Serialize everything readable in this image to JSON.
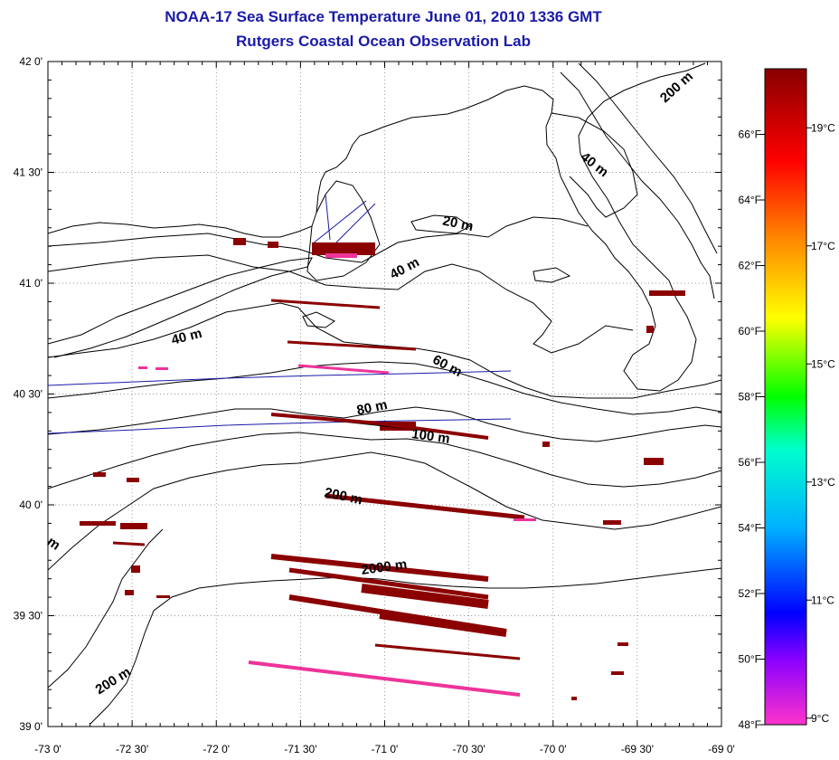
{
  "title": {
    "line1": "NOAA-17 Sea Surface Temperature June 01, 2010 1336 GMT",
    "line2": "Rutgers Coastal Ocean Observation Lab"
  },
  "map": {
    "lon_range": [
      -73.0,
      -69.0
    ],
    "lat_range": [
      39.0,
      42.0
    ],
    "lon_ticks": [
      "-73 0'",
      "-72 30'",
      "-72 0'",
      "-71 30'",
      "-71 0'",
      "-70 30'",
      "-70 0'",
      "-69 30'",
      "-69 0'"
    ],
    "lat_ticks": [
      "39 0'",
      "39 30'",
      "40 0'",
      "40 30'",
      "41 0'",
      "41 30'",
      "42 0'"
    ],
    "gridlines": true,
    "contour_labels": [
      {
        "text": "200 m",
        "lon": -69.25,
        "lat": 41.87,
        "angle": -42
      },
      {
        "text": "40 m",
        "lon": -69.77,
        "lat": 41.52,
        "angle": 38
      },
      {
        "text": "20 m",
        "lon": -70.57,
        "lat": 41.25,
        "angle": 12
      },
      {
        "text": "40 m",
        "lon": -70.87,
        "lat": 41.05,
        "angle": -28
      },
      {
        "text": "40 m",
        "lon": -72.17,
        "lat": 40.74,
        "angle": -14
      },
      {
        "text": "60 m",
        "lon": -70.64,
        "lat": 40.61,
        "angle": 28
      },
      {
        "text": "80 m",
        "lon": -71.07,
        "lat": 40.42,
        "angle": -12
      },
      {
        "text": "100 m",
        "lon": -70.73,
        "lat": 40.29,
        "angle": 8
      },
      {
        "text": "200 m",
        "lon": -71.25,
        "lat": 40.02,
        "angle": 12
      },
      {
        "text": "2000 m",
        "lon": -71.0,
        "lat": 39.7,
        "angle": -8
      },
      {
        "text": "200 m",
        "lon": -72.6,
        "lat": 39.19,
        "angle": -32
      },
      {
        "text": "m",
        "lon": -72.98,
        "lat": 39.81,
        "angle": 35
      }
    ]
  },
  "colorbar": {
    "f_ticks": [
      "66°F",
      "64°F",
      "62°F",
      "60°F",
      "58°F",
      "56°F",
      "54°F",
      "52°F",
      "50°F",
      "48°F"
    ],
    "c_ticks": [
      "19°C",
      "17°C",
      "15°C",
      "13°C",
      "11°C",
      "9°C"
    ],
    "colors": [
      "#ff33cc",
      "#8800ff",
      "#0000ff",
      "#00b0ff",
      "#00ffcc",
      "#00ff00",
      "#ffff00",
      "#ff8800",
      "#ff0000",
      "#880000"
    ]
  },
  "sst_observed": {
    "description_value": "Patchy clouds; most pixels shown are dark red (~67°F) cloud-edge artifacts with a few magenta (~48°F) streaks"
  }
}
